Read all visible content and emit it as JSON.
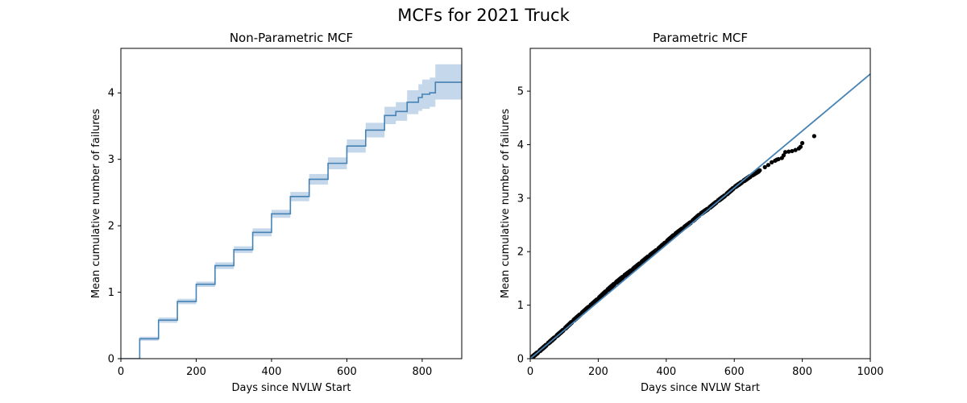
{
  "figure": {
    "suptitle": "MCFs for 2021 Truck"
  },
  "chart_data": [
    {
      "type": "line",
      "title": "Non-Parametric MCF",
      "xlabel": "Days since NVLW Start",
      "ylabel": "Mean cumulative number of failures",
      "xlim": [
        0,
        905
      ],
      "ylim": [
        0,
        4.67
      ],
      "xticks": [
        0,
        200,
        400,
        600,
        800
      ],
      "yticks": [
        0,
        1,
        2,
        3,
        4
      ],
      "grid": false,
      "colors": {
        "line": "#4682b4",
        "band": "#c5d7ea"
      },
      "series": [
        {
          "kind": "step",
          "x": [
            0,
            50,
            100,
            150,
            200,
            250,
            300,
            350,
            400,
            450,
            500,
            550,
            600,
            650,
            700,
            730,
            760,
            790,
            800,
            820,
            835,
            905
          ],
          "y": [
            0,
            0.3,
            0.58,
            0.86,
            1.12,
            1.4,
            1.64,
            1.9,
            2.18,
            2.44,
            2.7,
            2.94,
            3.2,
            3.44,
            3.66,
            3.72,
            3.86,
            3.93,
            3.98,
            4.0,
            4.16,
            4.16
          ],
          "lower": [
            0,
            0.27,
            0.54,
            0.82,
            1.08,
            1.35,
            1.59,
            1.84,
            2.12,
            2.37,
            2.62,
            2.85,
            3.1,
            3.33,
            3.53,
            3.58,
            3.68,
            3.73,
            3.76,
            3.79,
            3.9,
            3.9
          ],
          "upper": [
            0,
            0.33,
            0.62,
            0.9,
            1.16,
            1.45,
            1.69,
            1.96,
            2.24,
            2.51,
            2.78,
            3.03,
            3.3,
            3.55,
            3.79,
            3.86,
            4.04,
            4.13,
            4.2,
            4.23,
            4.43,
            4.43
          ]
        }
      ]
    },
    {
      "type": "scatter",
      "title": "Parametric MCF",
      "xlabel": "Days since NVLW Start",
      "ylabel": "Mean cumulative number of failures",
      "xlim": [
        0,
        1000
      ],
      "ylim": [
        0,
        5.8
      ],
      "xticks": [
        0,
        200,
        400,
        600,
        800,
        1000
      ],
      "yticks": [
        0,
        1,
        2,
        3,
        4,
        5
      ],
      "grid": false,
      "colors": {
        "fit": "#4682b4",
        "points": "#000000"
      },
      "fit_line": {
        "x": [
          0,
          1000
        ],
        "y": [
          0,
          5.32
        ]
      },
      "points": {
        "x": [
          0,
          25,
          50,
          75,
          100,
          125,
          150,
          175,
          200,
          225,
          250,
          275,
          300,
          325,
          350,
          375,
          400,
          425,
          450,
          475,
          500,
          525,
          550,
          575,
          600,
          625,
          650,
          675,
          690,
          700,
          710,
          720,
          725,
          730,
          740,
          745,
          750,
          760,
          770,
          780,
          790,
          795,
          800,
          835
        ],
        "y": [
          0,
          0.13,
          0.27,
          0.41,
          0.55,
          0.7,
          0.84,
          0.98,
          1.12,
          1.27,
          1.41,
          1.54,
          1.66,
          1.79,
          1.92,
          2.04,
          2.18,
          2.32,
          2.44,
          2.56,
          2.7,
          2.81,
          2.94,
          3.06,
          3.2,
          3.31,
          3.42,
          3.52,
          3.58,
          3.62,
          3.67,
          3.7,
          3.72,
          3.73,
          3.75,
          3.8,
          3.86,
          3.87,
          3.88,
          3.9,
          3.93,
          3.96,
          4.03,
          4.16
        ]
      }
    }
  ]
}
